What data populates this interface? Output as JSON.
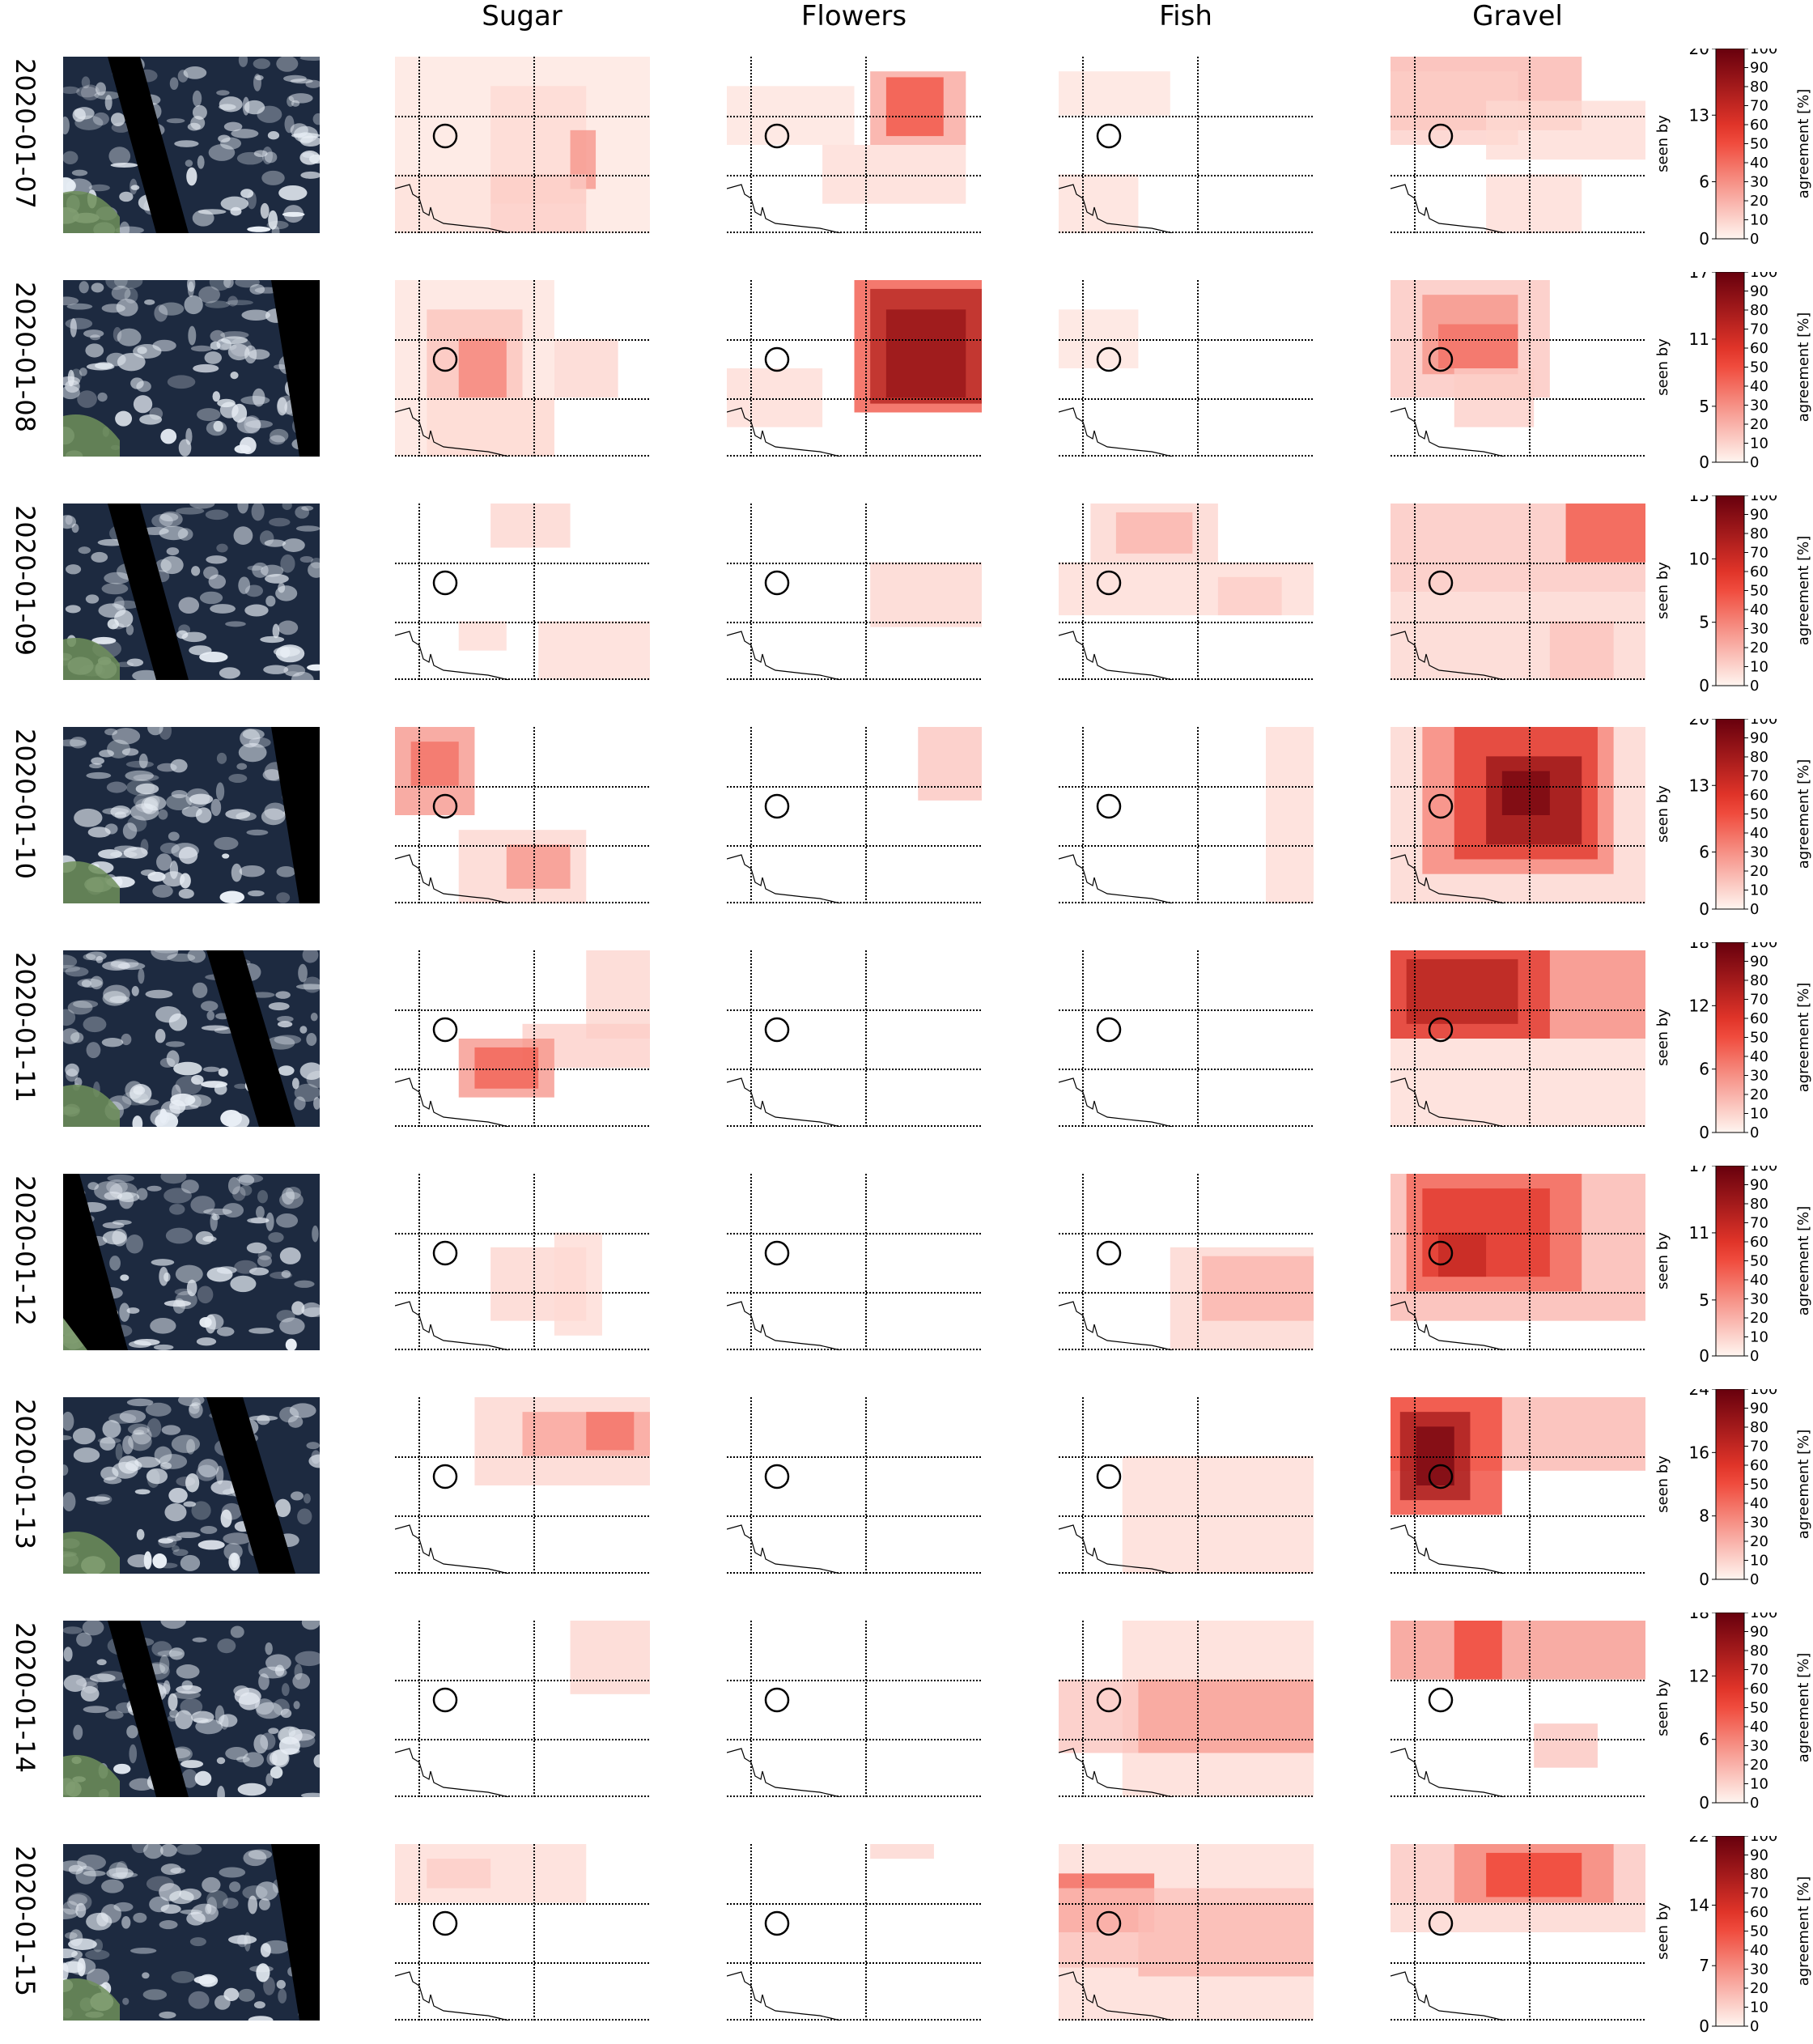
{
  "columns": [
    "Sugar",
    "Flowers",
    "Fish",
    "Gravel"
  ],
  "colors": {
    "heat_low": "#fff5f0",
    "heat_high": "#67000d",
    "reference_line": "#000000",
    "sat_ocean": "#1d2a40",
    "sat_cloud": "#e8eef5",
    "sat_land": "#6f8f5a",
    "swath_gap": "#000000"
  },
  "rows": [
    {
      "date": "2020-01-07",
      "seen_by_max": 20,
      "seen_by_ticks": [
        0,
        6,
        13,
        20
      ],
      "swath": "left-center",
      "heat": {
        "Sugar": [
          [
            0,
            0,
            8,
            7,
            0.05
          ],
          [
            3,
            1,
            6,
            5,
            0.08
          ],
          [
            5,
            2,
            5,
            6,
            0.18
          ],
          [
            5.5,
            2.5,
            6.3,
            4.5,
            0.3
          ],
          [
            3,
            4,
            6,
            7,
            0.12
          ],
          [
            0,
            4,
            3,
            7,
            0.06
          ]
        ],
        "Flowers": [
          [
            0,
            1,
            4,
            3,
            0.06
          ],
          [
            4.5,
            0.5,
            7.5,
            3,
            0.25
          ],
          [
            5,
            0.7,
            6.8,
            2.7,
            0.5
          ],
          [
            3,
            3,
            7.5,
            5,
            0.08
          ]
        ],
        "Fish": [
          [
            0,
            0.5,
            3.5,
            2,
            0.06
          ],
          [
            0,
            4,
            2.5,
            6,
            0.07
          ]
        ],
        "Gravel": [
          [
            0,
            0,
            6,
            2.5,
            0.2
          ],
          [
            0,
            0.5,
            4,
            3,
            0.12
          ],
          [
            3,
            1.5,
            8,
            3.5,
            0.08
          ],
          [
            3,
            4,
            6,
            6,
            0.08
          ]
        ]
      }
    },
    {
      "date": "2020-01-08",
      "seen_by_max": 17,
      "seen_by_ticks": [
        0,
        5,
        11,
        17
      ],
      "swath": "right",
      "heat": {
        "Sugar": [
          [
            0,
            0,
            5,
            6,
            0.06
          ],
          [
            1,
            1,
            4,
            4,
            0.15
          ],
          [
            2,
            2,
            3.5,
            4,
            0.35
          ],
          [
            5,
            2,
            7,
            4,
            0.1
          ],
          [
            1,
            4,
            5,
            6,
            0.08
          ]
        ],
        "Flowers": [
          [
            4,
            0,
            8,
            4.5,
            0.5
          ],
          [
            4.5,
            0.3,
            8,
            4.2,
            0.75
          ],
          [
            5,
            1,
            7.5,
            4,
            0.85
          ],
          [
            0,
            3,
            3,
            5,
            0.08
          ]
        ],
        "Fish": [
          [
            0,
            1,
            2.5,
            3,
            0.06
          ]
        ],
        "Gravel": [
          [
            0,
            0,
            5,
            4,
            0.15
          ],
          [
            1,
            0.5,
            4,
            3.2,
            0.3
          ],
          [
            1.5,
            1.5,
            4,
            3,
            0.4
          ],
          [
            2,
            3,
            4.5,
            5,
            0.12
          ]
        ]
      }
    },
    {
      "date": "2020-01-09",
      "seen_by_max": 15,
      "seen_by_ticks": [
        0,
        5,
        10,
        15
      ],
      "swath": "left-center",
      "heat": {
        "Sugar": [
          [
            3,
            0,
            5.5,
            1.5,
            0.1
          ],
          [
            2,
            4,
            3.5,
            5,
            0.08
          ],
          [
            4.5,
            4,
            8,
            6,
            0.08
          ]
        ],
        "Flowers": [
          [
            4.5,
            2,
            8,
            4.2,
            0.1
          ]
        ],
        "Fish": [
          [
            1,
            0,
            5,
            2,
            0.1
          ],
          [
            1.8,
            0.3,
            4.2,
            1.7,
            0.2
          ],
          [
            0,
            2,
            8,
            3.8,
            0.08
          ],
          [
            5,
            2.5,
            7,
            3.8,
            0.12
          ]
        ],
        "Gravel": [
          [
            0,
            0,
            8,
            3,
            0.15
          ],
          [
            5.5,
            0,
            8,
            2,
            0.5
          ],
          [
            0,
            3,
            8,
            6,
            0.1
          ],
          [
            5,
            4,
            7,
            6,
            0.15
          ]
        ]
      }
    },
    {
      "date": "2020-01-10",
      "seen_by_max": 20,
      "seen_by_ticks": [
        0,
        6,
        13,
        20
      ],
      "swath": "right",
      "heat": {
        "Sugar": [
          [
            0,
            0,
            2.5,
            3,
            0.3
          ],
          [
            0.5,
            0.5,
            2,
            2,
            0.4
          ],
          [
            2,
            3.5,
            6,
            6,
            0.1
          ],
          [
            3.5,
            4,
            5.5,
            5.5,
            0.3
          ]
        ],
        "Flowers": [
          [
            6,
            0,
            8,
            2.5,
            0.15
          ]
        ],
        "Fish": [
          [
            6.5,
            0,
            8,
            6,
            0.08
          ]
        ],
        "Gravel": [
          [
            0,
            0,
            8,
            6,
            0.1
          ],
          [
            1,
            0,
            7,
            5,
            0.35
          ],
          [
            2,
            0,
            6.5,
            4.5,
            0.6
          ],
          [
            3,
            1,
            6,
            4,
            0.85
          ],
          [
            3.5,
            1.5,
            5,
            3,
            0.95
          ]
        ]
      }
    },
    {
      "date": "2020-01-11",
      "seen_by_max": 18,
      "seen_by_ticks": [
        0,
        6,
        12,
        18
      ],
      "swath": "right-center",
      "heat": {
        "Sugar": [
          [
            6,
            0,
            8,
            3,
            0.1
          ],
          [
            4,
            2.5,
            8,
            4,
            0.12
          ],
          [
            2,
            3,
            5,
            5,
            0.3
          ],
          [
            2.5,
            3.3,
            4.5,
            4.7,
            0.45
          ]
        ],
        "Flowers": [],
        "Fish": [],
        "Gravel": [
          [
            0,
            0,
            8,
            3,
            0.35
          ],
          [
            0,
            0,
            5,
            3,
            0.6
          ],
          [
            0.5,
            0.3,
            4,
            2.5,
            0.75
          ],
          [
            0,
            3,
            8,
            6,
            0.08
          ]
        ]
      }
    },
    {
      "date": "2020-01-12",
      "seen_by_max": 17,
      "seen_by_ticks": [
        0,
        5,
        11,
        17
      ],
      "swath": "left",
      "heat": {
        "Sugar": [
          [
            3,
            2.5,
            6,
            5,
            0.1
          ],
          [
            5,
            2,
            6.5,
            5.5,
            0.08
          ]
        ],
        "Fish": [
          [
            3.5,
            2.5,
            8,
            6,
            0.1
          ],
          [
            4.5,
            2.8,
            8,
            5,
            0.2
          ]
        ],
        "Flowers": [],
        "Gravel": [
          [
            0,
            0,
            8,
            5,
            0.2
          ],
          [
            0.5,
            0,
            6,
            4,
            0.45
          ],
          [
            1,
            0.5,
            5,
            3.5,
            0.6
          ],
          [
            1.5,
            2,
            3,
            3.5,
            0.7
          ]
        ]
      }
    },
    {
      "date": "2020-01-13",
      "seen_by_max": 24,
      "seen_by_ticks": [
        0,
        8,
        16,
        24
      ],
      "swath": "right-center",
      "heat": {
        "Sugar": [
          [
            2.5,
            0,
            8,
            3,
            0.1
          ],
          [
            4,
            0.5,
            8,
            2,
            0.25
          ],
          [
            6,
            0.5,
            7.5,
            1.8,
            0.4
          ]
        ],
        "Flowers": [],
        "Fish": [
          [
            2,
            2,
            8,
            6,
            0.08
          ]
        ],
        "Gravel": [
          [
            0,
            0,
            8,
            2.5,
            0.2
          ],
          [
            0,
            0,
            3.5,
            4,
            0.55
          ],
          [
            0.3,
            0.5,
            2.5,
            3.5,
            0.8
          ],
          [
            0.8,
            1,
            2,
            3,
            0.95
          ]
        ]
      }
    },
    {
      "date": "2020-01-14",
      "seen_by_max": 18,
      "seen_by_ticks": [
        0,
        6,
        12,
        18
      ],
      "swath": "left-center",
      "heat": {
        "Sugar": [
          [
            5.5,
            0,
            8,
            2.5,
            0.1
          ]
        ],
        "Flowers": [],
        "Fish": [
          [
            2,
            0,
            8,
            6,
            0.08
          ],
          [
            0,
            2,
            8,
            4.5,
            0.15
          ],
          [
            2.5,
            2,
            8,
            4.5,
            0.25
          ]
        ],
        "Gravel": [
          [
            0,
            0,
            8,
            2,
            0.3
          ],
          [
            2,
            0,
            3.5,
            2,
            0.55
          ],
          [
            4.5,
            3.5,
            6.5,
            5,
            0.15
          ]
        ]
      }
    },
    {
      "date": "2020-01-15",
      "seen_by_max": 22,
      "seen_by_ticks": [
        0,
        7,
        14,
        22
      ],
      "swath": "right",
      "heat": {
        "Sugar": [
          [
            0,
            0,
            6,
            2,
            0.08
          ],
          [
            1,
            0.5,
            3,
            1.5,
            0.12
          ]
        ],
        "Flowers": [
          [
            4.5,
            0,
            6.5,
            0.5,
            0.1
          ]
        ],
        "Fish": [
          [
            0,
            0,
            8,
            6,
            0.08
          ],
          [
            0,
            1,
            3,
            3,
            0.45
          ],
          [
            2.5,
            2,
            8,
            4.5,
            0.2
          ],
          [
            0,
            1.5,
            8,
            4.2,
            0.15
          ]
        ],
        "Gravel": [
          [
            0,
            0,
            8,
            2,
            0.15
          ],
          [
            2,
            0,
            7,
            2,
            0.35
          ],
          [
            3,
            0.3,
            6,
            1.8,
            0.55
          ],
          [
            0,
            2,
            8,
            3,
            0.1
          ]
        ]
      }
    }
  ],
  "colorbar": {
    "agreement_ticks": [
      0,
      10,
      20,
      30,
      40,
      50,
      60,
      70,
      80,
      90,
      100
    ],
    "agreement_label": "agreement [%]",
    "seen_by_label": "seen by"
  }
}
